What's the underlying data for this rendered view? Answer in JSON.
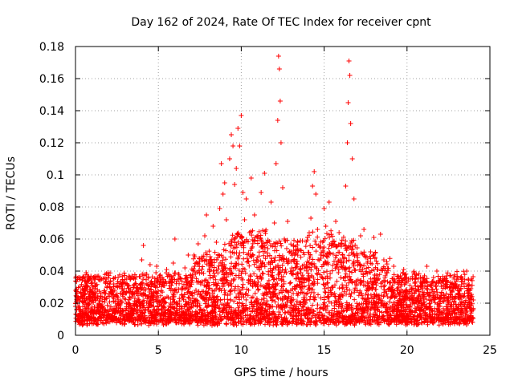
{
  "chart_data": {
    "type": "scatter",
    "title": "Day 162 of 2024, Rate Of TEC Index for receiver cpnt",
    "xlabel": "GPS time / hours",
    "ylabel": "ROTI / TECUs",
    "xlim": [
      0,
      25
    ],
    "ylim": [
      0,
      0.18
    ],
    "x_ticks": [
      "0",
      "5",
      "10",
      "15",
      "20",
      "25"
    ],
    "y_ticks": [
      "0",
      "0.02",
      "0.04",
      "0.06",
      "0.08",
      "0.1",
      "0.12",
      "0.14",
      "0.16",
      "0.18"
    ],
    "grid": true,
    "marker": "+",
    "series": [
      {
        "name": "ROTI",
        "color": "#ff0000",
        "points": [
          [
            0.0,
            0.018
          ],
          [
            0.1,
            0.026
          ],
          [
            0.2,
            0.036
          ],
          [
            0.3,
            0.012
          ],
          [
            0.5,
            0.021
          ],
          [
            0.7,
            0.031
          ],
          [
            0.9,
            0.014
          ],
          [
            1.0,
            0.028
          ],
          [
            1.2,
            0.035
          ],
          [
            1.4,
            0.017
          ],
          [
            1.6,
            0.024
          ],
          [
            1.8,
            0.033
          ],
          [
            2.0,
            0.012
          ],
          [
            2.2,
            0.027
          ],
          [
            2.4,
            0.036
          ],
          [
            2.6,
            0.019
          ],
          [
            2.8,
            0.029
          ],
          [
            3.0,
            0.032
          ],
          [
            3.2,
            0.014
          ],
          [
            3.4,
            0.026
          ],
          [
            3.6,
            0.035
          ],
          [
            3.8,
            0.021
          ],
          [
            4.0,
            0.047
          ],
          [
            4.1,
            0.056
          ],
          [
            4.3,
            0.038
          ],
          [
            4.5,
            0.044
          ],
          [
            4.7,
            0.024
          ],
          [
            4.9,
            0.043
          ],
          [
            5.1,
            0.036
          ],
          [
            5.3,
            0.018
          ],
          [
            5.5,
            0.041
          ],
          [
            5.7,
            0.031
          ],
          [
            5.9,
            0.045
          ],
          [
            6.0,
            0.06
          ],
          [
            6.2,
            0.038
          ],
          [
            6.4,
            0.025
          ],
          [
            6.6,
            0.042
          ],
          [
            6.8,
            0.05
          ],
          [
            7.0,
            0.034
          ],
          [
            7.2,
            0.049
          ],
          [
            7.4,
            0.057
          ],
          [
            7.6,
            0.039
          ],
          [
            7.8,
            0.062
          ],
          [
            7.9,
            0.075
          ],
          [
            8.1,
            0.045
          ],
          [
            8.3,
            0.068
          ],
          [
            8.5,
            0.058
          ],
          [
            8.7,
            0.079
          ],
          [
            8.8,
            0.107
          ],
          [
            8.9,
            0.088
          ],
          [
            9.0,
            0.095
          ],
          [
            9.1,
            0.072
          ],
          [
            9.3,
            0.11
          ],
          [
            9.4,
            0.125
          ],
          [
            9.5,
            0.118
          ],
          [
            9.6,
            0.094
          ],
          [
            9.7,
            0.104
          ],
          [
            9.8,
            0.129
          ],
          [
            9.9,
            0.118
          ],
          [
            10.0,
            0.137
          ],
          [
            10.1,
            0.089
          ],
          [
            10.2,
            0.072
          ],
          [
            10.3,
            0.085
          ],
          [
            10.5,
            0.064
          ],
          [
            10.6,
            0.098
          ],
          [
            10.8,
            0.075
          ],
          [
            11.0,
            0.062
          ],
          [
            11.2,
            0.089
          ],
          [
            11.4,
            0.101
          ],
          [
            11.6,
            0.054
          ],
          [
            11.8,
            0.083
          ],
          [
            12.0,
            0.07
          ],
          [
            12.1,
            0.107
          ],
          [
            12.2,
            0.134
          ],
          [
            12.25,
            0.174
          ],
          [
            12.3,
            0.166
          ],
          [
            12.35,
            0.146
          ],
          [
            12.4,
            0.12
          ],
          [
            12.5,
            0.092
          ],
          [
            12.6,
            0.06
          ],
          [
            12.8,
            0.071
          ],
          [
            13.0,
            0.052
          ],
          [
            13.2,
            0.046
          ],
          [
            13.4,
            0.058
          ],
          [
            13.6,
            0.039
          ],
          [
            13.8,
            0.044
          ],
          [
            14.0,
            0.061
          ],
          [
            14.2,
            0.073
          ],
          [
            14.3,
            0.093
          ],
          [
            14.4,
            0.102
          ],
          [
            14.5,
            0.088
          ],
          [
            14.6,
            0.066
          ],
          [
            14.8,
            0.05
          ],
          [
            15.0,
            0.079
          ],
          [
            15.1,
            0.068
          ],
          [
            15.3,
            0.083
          ],
          [
            15.5,
            0.056
          ],
          [
            15.7,
            0.071
          ],
          [
            15.9,
            0.064
          ],
          [
            16.1,
            0.05
          ],
          [
            16.3,
            0.093
          ],
          [
            16.4,
            0.12
          ],
          [
            16.45,
            0.145
          ],
          [
            16.5,
            0.171
          ],
          [
            16.55,
            0.162
          ],
          [
            16.6,
            0.132
          ],
          [
            16.7,
            0.11
          ],
          [
            16.8,
            0.085
          ],
          [
            17.0,
            0.05
          ],
          [
            17.2,
            0.062
          ],
          [
            17.4,
            0.066
          ],
          [
            17.6,
            0.045
          ],
          [
            17.8,
            0.052
          ],
          [
            18.0,
            0.061
          ],
          [
            18.2,
            0.041
          ],
          [
            18.4,
            0.063
          ],
          [
            18.6,
            0.047
          ],
          [
            18.8,
            0.039
          ],
          [
            19.0,
            0.033
          ],
          [
            19.2,
            0.043
          ],
          [
            19.4,
            0.028
          ],
          [
            19.6,
            0.037
          ],
          [
            19.8,
            0.041
          ],
          [
            20.0,
            0.026
          ],
          [
            20.2,
            0.035
          ],
          [
            20.4,
            0.039
          ],
          [
            20.6,
            0.022
          ],
          [
            20.8,
            0.031
          ],
          [
            21.0,
            0.035
          ],
          [
            21.2,
            0.043
          ],
          [
            21.4,
            0.025
          ],
          [
            21.6,
            0.033
          ],
          [
            21.8,
            0.04
          ],
          [
            22.0,
            0.021
          ],
          [
            22.2,
            0.034
          ],
          [
            22.4,
            0.037
          ],
          [
            22.6,
            0.018
          ],
          [
            22.8,
            0.03
          ],
          [
            23.0,
            0.035
          ],
          [
            23.2,
            0.013
          ],
          [
            23.4,
            0.024
          ],
          [
            23.6,
            0.04
          ],
          [
            23.7,
            0.035
          ],
          [
            23.8,
            0.028
          ],
          [
            23.9,
            0.016
          ],
          [
            24.0,
            0.022
          ]
        ]
      }
    ]
  }
}
